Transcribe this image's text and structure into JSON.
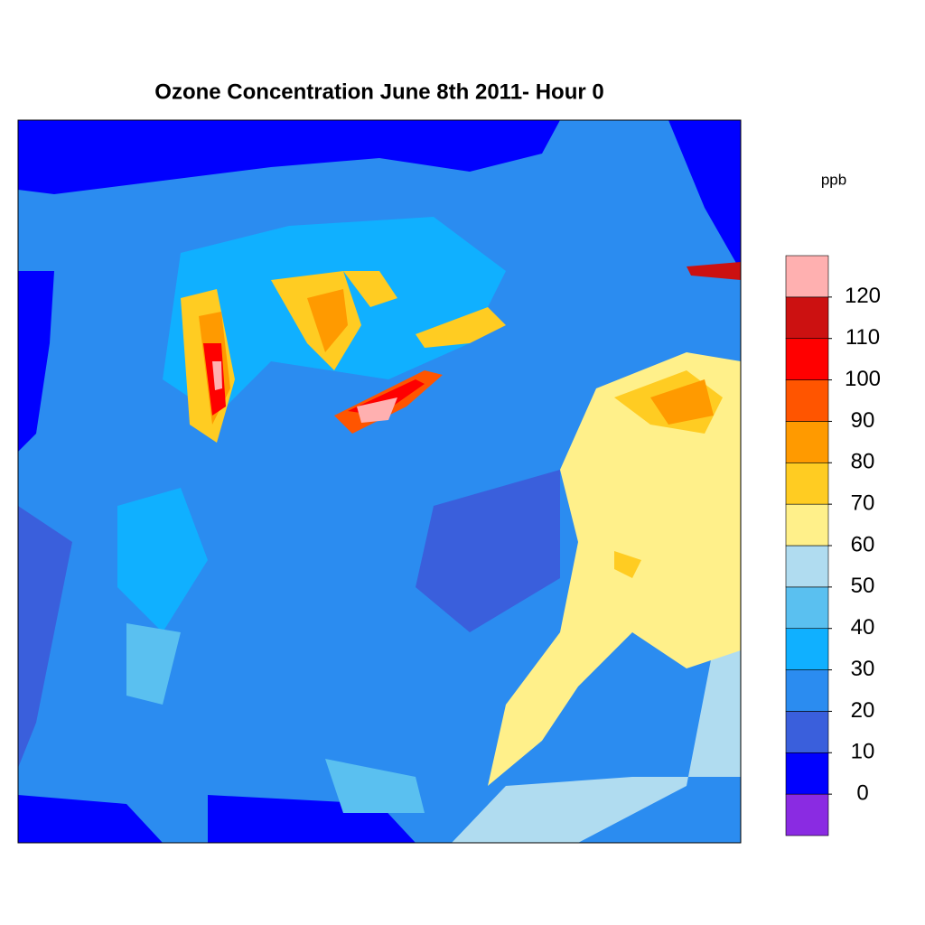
{
  "title": "Ozone Concentration June 8th 2011- Hour 0",
  "colorbar": {
    "unit": "ppb",
    "levels": [
      0,
      10,
      20,
      30,
      40,
      50,
      60,
      70,
      80,
      90,
      100,
      110,
      120
    ],
    "colors": [
      "#8a2be2",
      "#0000ff",
      "#3a5fdc",
      "#2b8cf0",
      "#10b0ff",
      "#5ac0f0",
      "#b0dcf0",
      "#fff08a",
      "#ffcc22",
      "#ff9a00",
      "#ff5500",
      "#ff0000",
      "#cc1111",
      "#ffb0b0"
    ]
  }
}
